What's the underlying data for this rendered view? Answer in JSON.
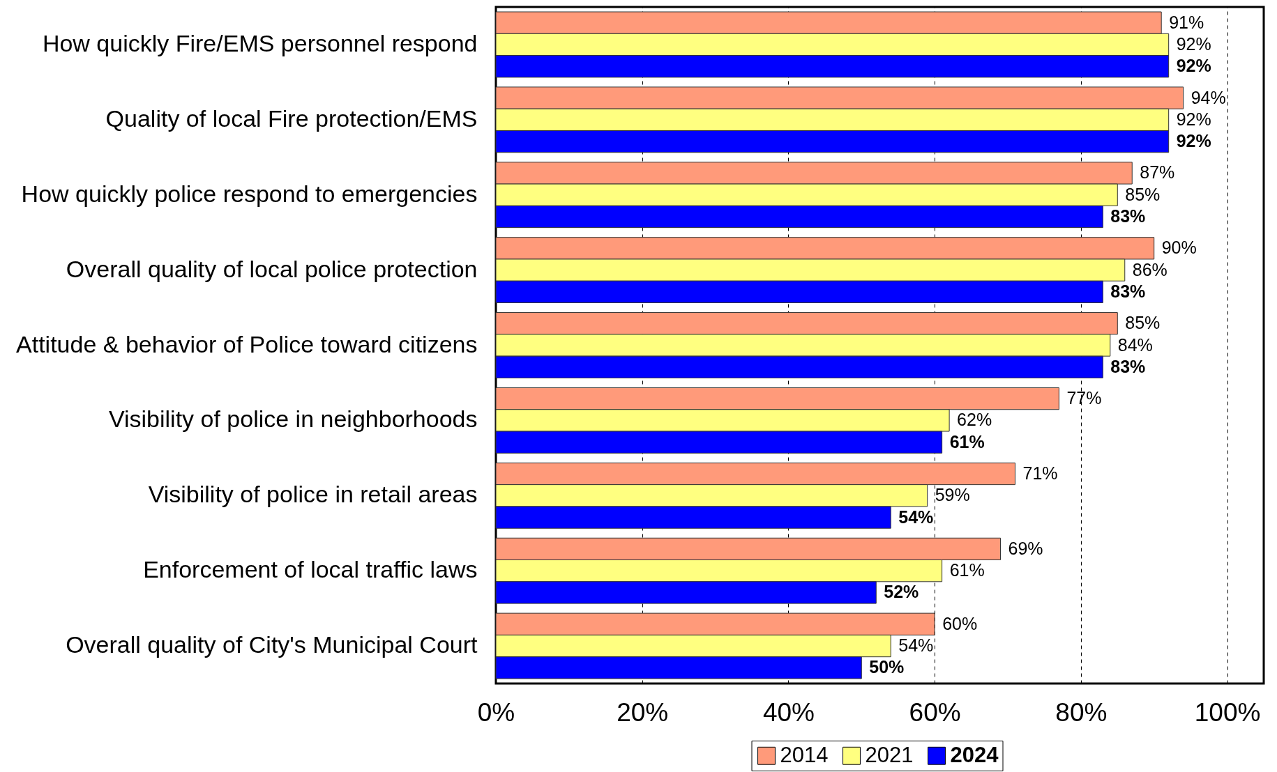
{
  "chart_data": {
    "type": "bar",
    "orientation": "horizontal",
    "categories": [
      "How quickly Fire/EMS personnel respond",
      "Quality of local Fire protection/EMS",
      "How quickly police respond to emergencies",
      "Overall quality of local police protection",
      "Attitude & behavior of Police toward citizens",
      "Visibility of police in neighborhoods",
      "Visibility of police in retail areas",
      "Enforcement of local traffic laws",
      "Overall quality of City's Municipal Court"
    ],
    "series": [
      {
        "name": "2014",
        "color": "#ff9a7a",
        "values": [
          91,
          94,
          87,
          90,
          85,
          77,
          71,
          69,
          60
        ],
        "value_labels": [
          "91%",
          "94%",
          "87%",
          "90%",
          "85%",
          "77%",
          "71%",
          "69%",
          "60%"
        ]
      },
      {
        "name": "2021",
        "color": "#ffff80",
        "values": [
          92,
          92,
          85,
          86,
          84,
          62,
          59,
          61,
          54
        ],
        "value_labels": [
          "92%",
          "92%",
          "85%",
          "86%",
          "84%",
          "62%",
          "59%",
          "61%",
          "54%"
        ]
      },
      {
        "name": "2024",
        "color": "#0000ff",
        "values": [
          92,
          92,
          83,
          83,
          83,
          61,
          54,
          52,
          50
        ],
        "value_labels": [
          "92%",
          "92%",
          "83%",
          "83%",
          "83%",
          "61%",
          "54%",
          "52%",
          "50%"
        ]
      }
    ],
    "xlim": [
      0,
      105
    ],
    "xticks": [
      {
        "value": 0,
        "label": "0%"
      },
      {
        "value": 20,
        "label": "20%"
      },
      {
        "value": 40,
        "label": "40%"
      },
      {
        "value": 60,
        "label": "60%"
      },
      {
        "value": 80,
        "label": "80%"
      },
      {
        "value": 100,
        "label": "100%"
      }
    ],
    "grid": "x",
    "legend": "bottom"
  }
}
